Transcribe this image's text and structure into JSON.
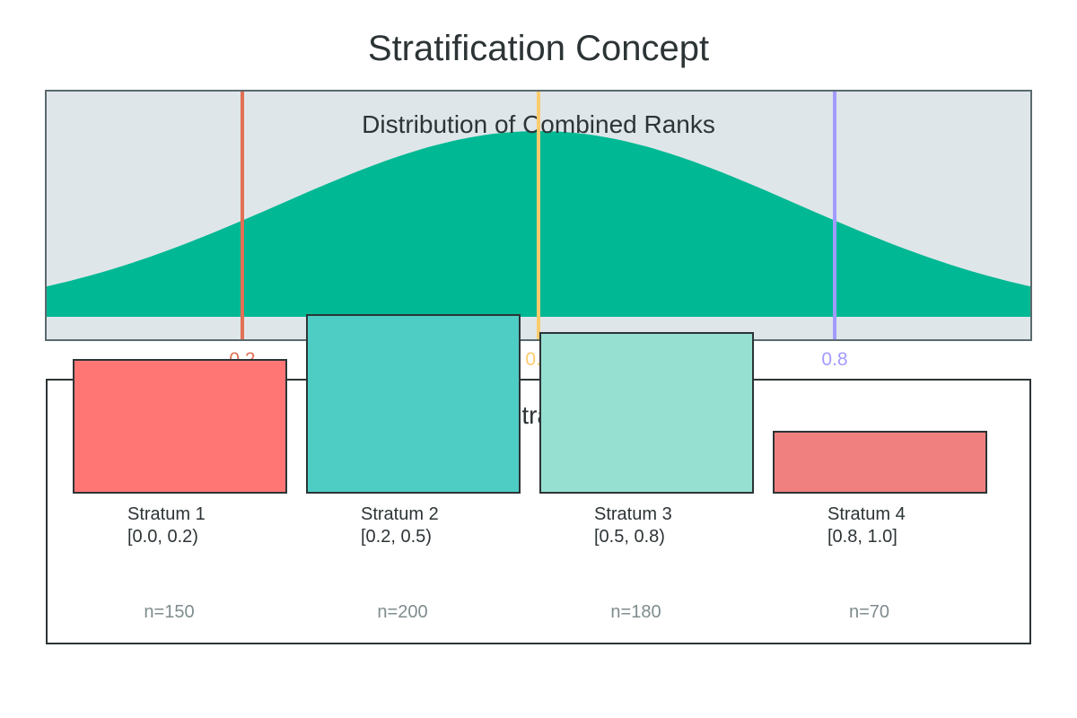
{
  "figure_title": "Stratification Concept",
  "top_panel": {
    "title": "Distribution of Combined Ranks",
    "bg_color": "#dfe6e9",
    "border_color": "#5a6a6e",
    "curve_color": "#00b894",
    "boundaries": [
      {
        "value": 0.2,
        "label": "0.2",
        "color": "#e17055"
      },
      {
        "value": 0.5,
        "label": "0.5",
        "color": "#fdcb6e"
      },
      {
        "value": 0.8,
        "label": "0.8",
        "color": "#a29bfe"
      }
    ]
  },
  "bottom_panel": {
    "title": "Strata",
    "border_color": "#2d3436",
    "strata": [
      {
        "name": "Stratum 1",
        "range": "[0.0, 0.2)",
        "n": 150,
        "n_label": "n=150",
        "color": "#ff7675"
      },
      {
        "name": "Stratum 2",
        "range": "[0.2, 0.5)",
        "n": 200,
        "n_label": "n=200",
        "color": "#4ecdc4"
      },
      {
        "name": "Stratum 3",
        "range": "[0.5, 0.8)",
        "n": 180,
        "n_label": "n=180",
        "color": "#96e0d2"
      },
      {
        "name": "Stratum 4",
        "range": "[0.8, 1.0]",
        "n": 70,
        "n_label": "n=70",
        "color": "#f08080"
      }
    ]
  },
  "chart_data": [
    {
      "type": "area",
      "title": "Distribution of Combined Ranks",
      "xlabel": "",
      "ylabel": "",
      "x_range": [
        0.0,
        1.0
      ],
      "shape": "bell-shaped density peaking at x=0.5, tails at 0 and 1",
      "fill_color": "#00b894",
      "grid": false,
      "legend": false,
      "boundary_lines": [
        {
          "x": 0.2,
          "label": "0.2",
          "color": "#e17055"
        },
        {
          "x": 0.5,
          "label": "0.5",
          "color": "#fdcb6e"
        },
        {
          "x": 0.8,
          "label": "0.8",
          "color": "#a29bfe"
        }
      ]
    },
    {
      "type": "bar",
      "title": "Strata",
      "categories": [
        "Stratum 1 [0.0, 0.2)",
        "Stratum 2 [0.2, 0.5)",
        "Stratum 3 [0.5, 0.8)",
        "Stratum 4 [0.8, 1.0]"
      ],
      "values": [
        150,
        200,
        180,
        70
      ],
      "bar_colors": [
        "#ff7675",
        "#4ecdc4",
        "#96e0d2",
        "#f08080"
      ],
      "annotations": [
        "n=150",
        "n=200",
        "n=180",
        "n=70"
      ],
      "xlabel": "",
      "ylabel": "",
      "grid": false,
      "legend": false
    }
  ]
}
